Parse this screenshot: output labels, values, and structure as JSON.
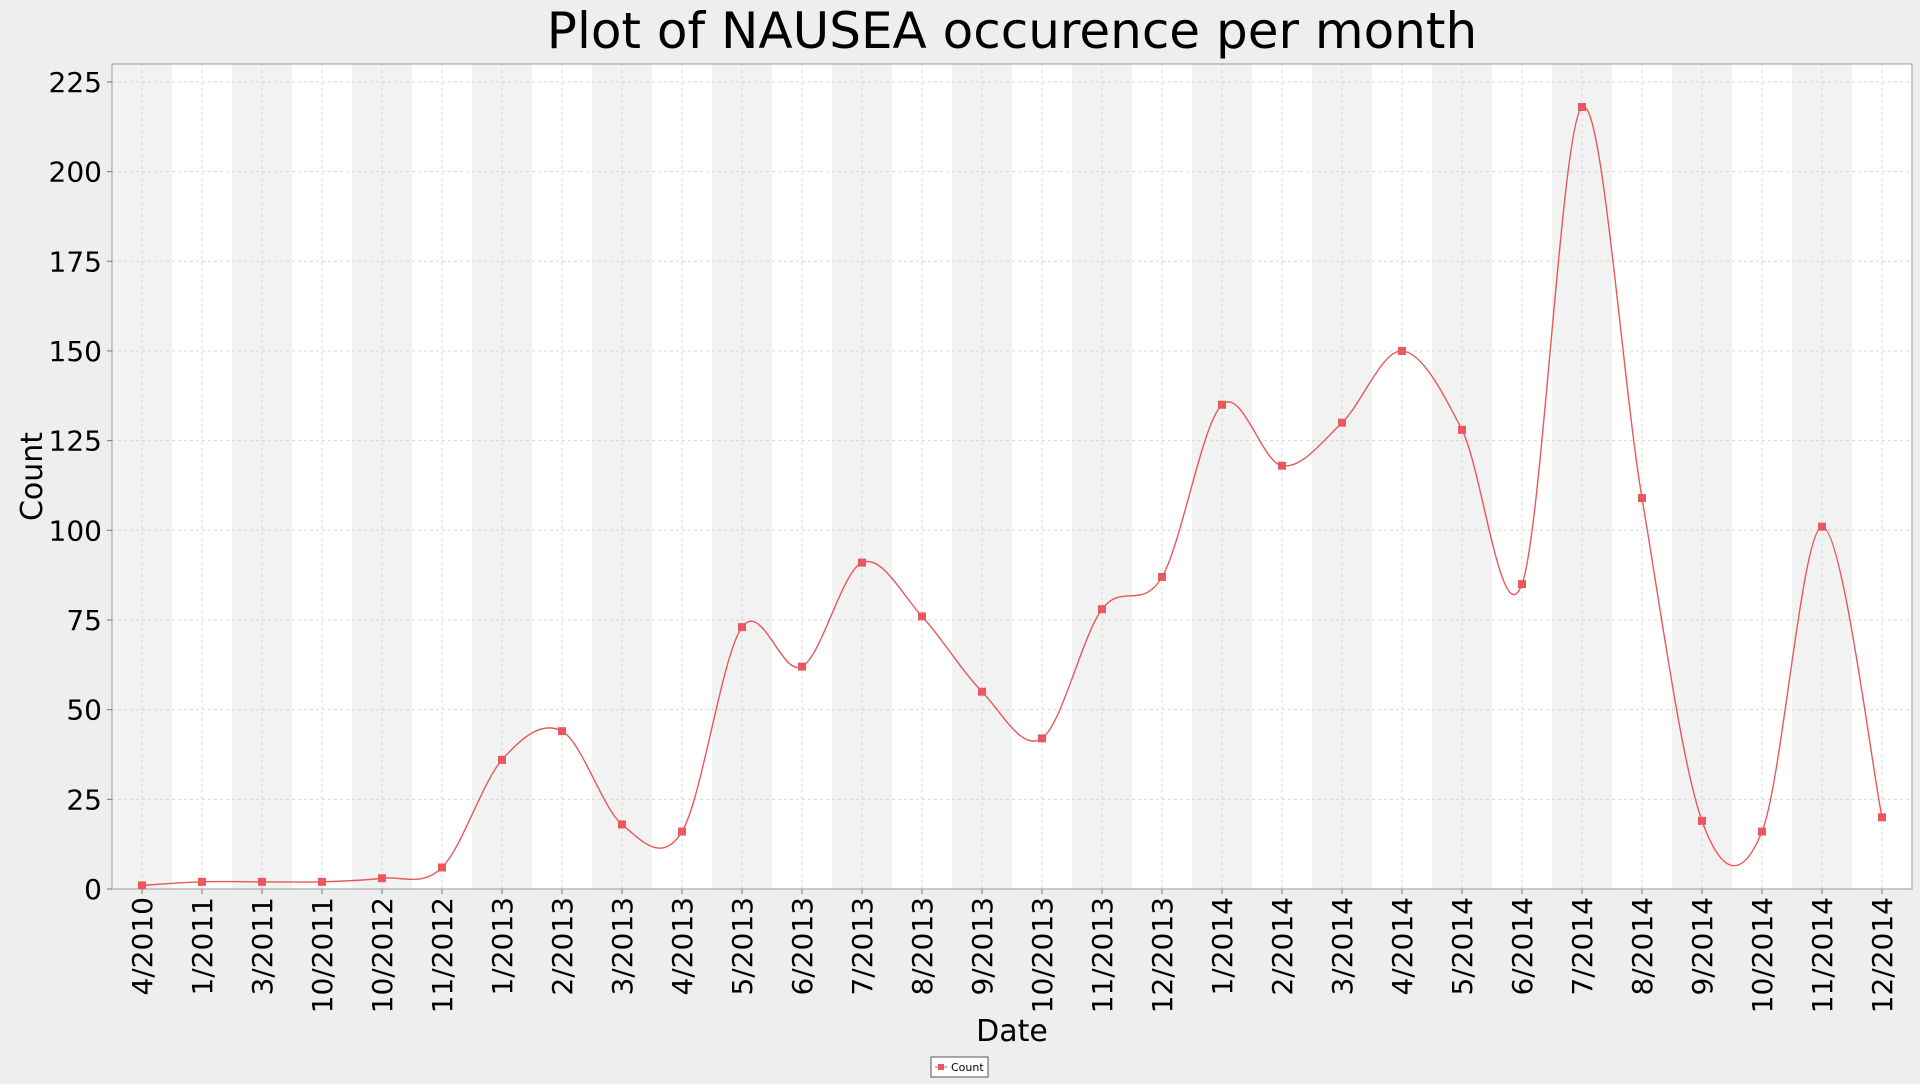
{
  "chart_data": {
    "type": "line",
    "title": "Plot of NAUSEA occurence per month",
    "xlabel": "Date",
    "ylabel": "Count",
    "ylim": [
      0,
      230
    ],
    "yticks": [
      0,
      25,
      50,
      75,
      100,
      125,
      150,
      175,
      200,
      225
    ],
    "grid": true,
    "legend_position": "bottom-center",
    "categories": [
      "4/2010",
      "1/2011",
      "3/2011",
      "10/2011",
      "10/2012",
      "11/2012",
      "1/2013",
      "2/2013",
      "3/2013",
      "4/2013",
      "5/2013",
      "6/2013",
      "7/2013",
      "8/2013",
      "9/2013",
      "10/2013",
      "11/2013",
      "12/2013",
      "1/2014",
      "2/2014",
      "3/2014",
      "4/2014",
      "5/2014",
      "6/2014",
      "7/2014",
      "8/2014",
      "9/2014",
      "10/2014",
      "11/2014",
      "12/2014"
    ],
    "series": [
      {
        "name": "Count",
        "color": "#e8585c",
        "values": [
          1,
          2,
          2,
          2,
          3,
          6,
          36,
          44,
          18,
          16,
          73,
          62,
          91,
          76,
          55,
          42,
          78,
          87,
          135,
          118,
          130,
          150,
          128,
          85,
          218,
          109,
          19,
          16,
          101,
          20
        ]
      }
    ]
  }
}
